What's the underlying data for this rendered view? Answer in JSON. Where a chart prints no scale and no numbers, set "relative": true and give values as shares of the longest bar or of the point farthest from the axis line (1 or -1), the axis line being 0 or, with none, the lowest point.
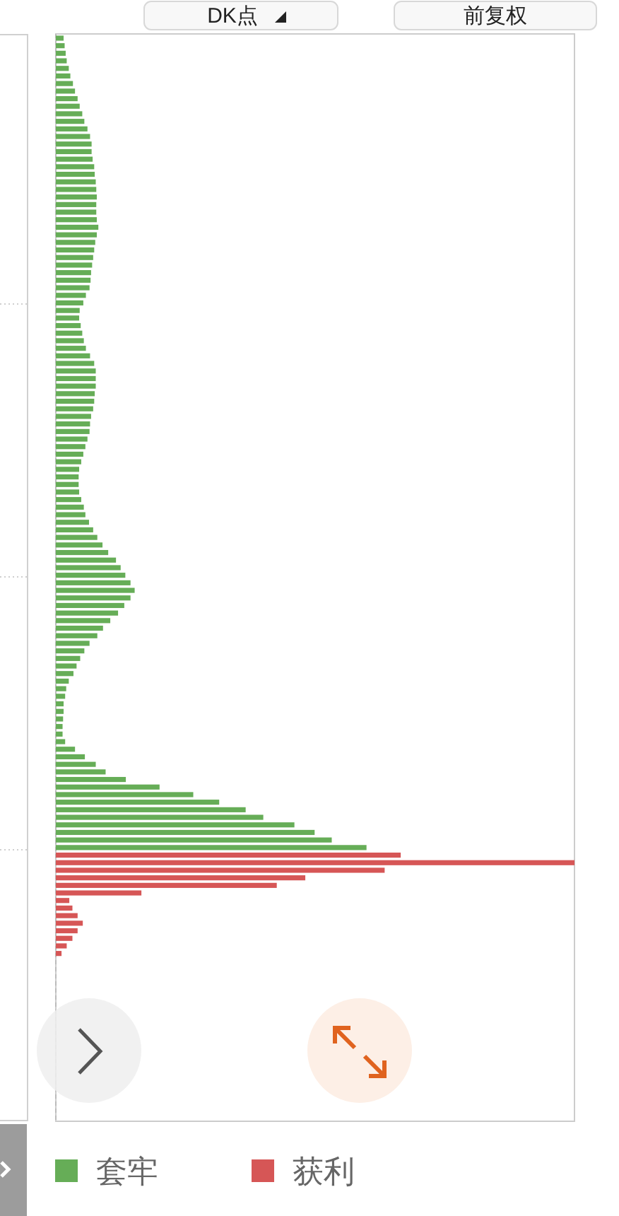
{
  "chart_data": {
    "type": "bar",
    "orientation": "horizontal",
    "relative": true,
    "stacked": true,
    "legend": "bottom",
    "annotations": [
      "DK点",
      "前复权"
    ],
    "categories": [
      null,
      null,
      null,
      null,
      null,
      null,
      null,
      null,
      null,
      null,
      null,
      null,
      null,
      null,
      null,
      null,
      null,
      null,
      null,
      null,
      null,
      null,
      null,
      null,
      null,
      null,
      null,
      null,
      null,
      null,
      null,
      null,
      null,
      null,
      null,
      null,
      null,
      null,
      null,
      null,
      null,
      null,
      null,
      null,
      null,
      null,
      null,
      null,
      null,
      null,
      null,
      null,
      null,
      null,
      null,
      null,
      null,
      null,
      null,
      null,
      null,
      null,
      null,
      null,
      null,
      null,
      null,
      null,
      null,
      null,
      null,
      null,
      null,
      null,
      null,
      null,
      null,
      null,
      null,
      null,
      null,
      null,
      null,
      null,
      null,
      null,
      null,
      null,
      null,
      null,
      null,
      null,
      null,
      null,
      null,
      null,
      null,
      null,
      null,
      null,
      null,
      null,
      null,
      null,
      null,
      null,
      null,
      null,
      null,
      null,
      null,
      null,
      null,
      null,
      null,
      null,
      null,
      null,
      null,
      null,
      null,
      null
    ],
    "series": [
      {
        "name": "套牢",
        "color": "#66ad57",
        "values": [
          0.015,
          0.017,
          0.019,
          0.021,
          0.025,
          0.028,
          0.033,
          0.037,
          0.042,
          0.046,
          0.051,
          0.055,
          0.061,
          0.066,
          0.069,
          0.069,
          0.071,
          0.074,
          0.075,
          0.077,
          0.078,
          0.079,
          0.078,
          0.078,
          0.079,
          0.082,
          0.079,
          0.076,
          0.074,
          0.072,
          0.07,
          0.068,
          0.067,
          0.065,
          0.058,
          0.053,
          0.046,
          0.045,
          0.048,
          0.051,
          0.054,
          0.058,
          0.066,
          0.074,
          0.077,
          0.077,
          0.077,
          0.075,
          0.074,
          0.072,
          0.068,
          0.066,
          0.065,
          0.061,
          0.057,
          0.053,
          0.049,
          0.045,
          0.044,
          0.044,
          0.045,
          0.049,
          0.054,
          0.057,
          0.064,
          0.072,
          0.08,
          0.09,
          0.101,
          0.116,
          0.125,
          0.134,
          0.144,
          0.152,
          0.144,
          0.132,
          0.12,
          0.105,
          0.091,
          0.08,
          0.065,
          0.055,
          0.047,
          0.04,
          0.034,
          0.025,
          0.02,
          0.018,
          0.015,
          0.015,
          0.014,
          0.013,
          0.013,
          0.018,
          0.037,
          0.056,
          0.077,
          0.096,
          0.135,
          0.2,
          0.265,
          0.315,
          0.366,
          0.4,
          0.46,
          0.499,
          0.532,
          0.599,
          null,
          null,
          null,
          null,
          null,
          null,
          null,
          null,
          null,
          null,
          null,
          null,
          null,
          null
        ]
      },
      {
        "name": "获利",
        "color": "#d65656",
        "values": [
          null,
          null,
          null,
          null,
          null,
          null,
          null,
          null,
          null,
          null,
          null,
          null,
          null,
          null,
          null,
          null,
          null,
          null,
          null,
          null,
          null,
          null,
          null,
          null,
          null,
          null,
          null,
          null,
          null,
          null,
          null,
          null,
          null,
          null,
          null,
          null,
          null,
          null,
          null,
          null,
          null,
          null,
          null,
          null,
          null,
          null,
          null,
          null,
          null,
          null,
          null,
          null,
          null,
          null,
          null,
          null,
          null,
          null,
          null,
          null,
          null,
          null,
          null,
          null,
          null,
          null,
          null,
          null,
          null,
          null,
          null,
          null,
          null,
          null,
          null,
          null,
          null,
          null,
          null,
          null,
          null,
          null,
          null,
          null,
          null,
          null,
          null,
          null,
          null,
          null,
          null,
          null,
          null,
          null,
          null,
          null,
          null,
          null,
          null,
          null,
          null,
          null,
          null,
          null,
          null,
          null,
          null,
          null,
          0.665,
          1,
          0.634,
          0.481,
          0.426,
          0.165,
          0.026,
          0.032,
          0.042,
          0.052,
          0.042,
          0.032,
          0.021,
          0.011
        ]
      }
    ]
  }
}
